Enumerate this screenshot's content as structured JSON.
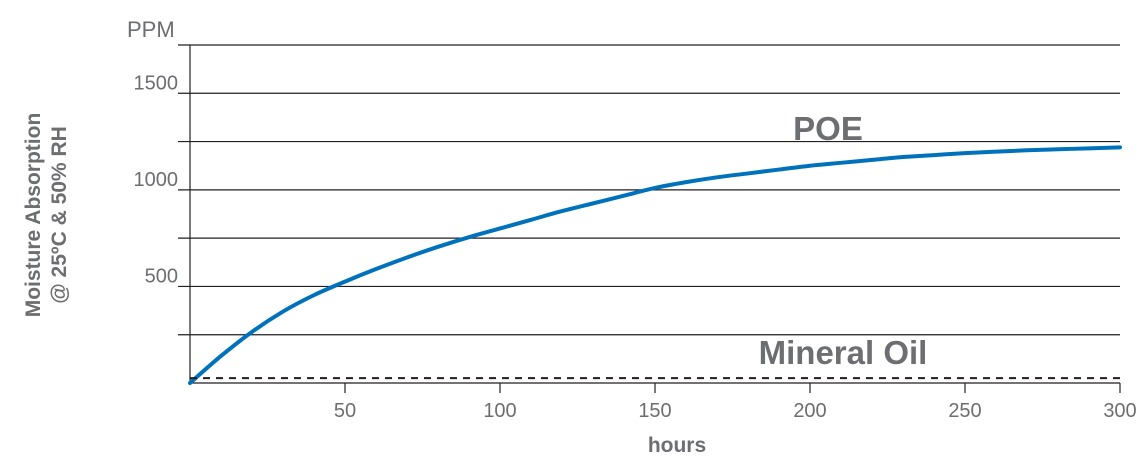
{
  "chart_data": {
    "type": "line",
    "ylabel_line1": "Moisture Absorption",
    "ylabel_line2": "@ 25ºC & 50% RH",
    "xlabel": "hours",
    "y_unit": "PPM",
    "xlim": [
      0,
      300
    ],
    "ylim": [
      0,
      1750
    ],
    "x_ticks": [
      50,
      100,
      150,
      200,
      250,
      300
    ],
    "y_ticks": [
      500,
      1000,
      1500
    ],
    "y_gridlines": [
      250,
      500,
      750,
      1000,
      1250,
      1500,
      1750
    ],
    "grid": true,
    "colors": {
      "poe": "#0072bc",
      "mineral_oil": "#231f20",
      "grid": "#231f20",
      "text": "#6d6e71"
    },
    "series": [
      {
        "name": "POE",
        "style": "solid",
        "x": [
          0,
          10,
          20,
          30,
          40,
          50,
          60,
          70,
          80,
          90,
          100,
          110,
          120,
          130,
          140,
          150,
          160,
          170,
          180,
          190,
          200,
          210,
          220,
          230,
          240,
          250,
          260,
          270,
          280,
          290,
          300
        ],
        "values": [
          0,
          140,
          265,
          370,
          455,
          525,
          590,
          650,
          705,
          755,
          800,
          845,
          890,
          930,
          970,
          1010,
          1040,
          1065,
          1085,
          1105,
          1125,
          1140,
          1155,
          1170,
          1180,
          1190,
          1198,
          1205,
          1210,
          1215,
          1220
        ]
      },
      {
        "name": "Mineral Oil",
        "style": "dashed",
        "x": [
          0,
          300
        ],
        "values": [
          25,
          25
        ]
      }
    ]
  }
}
